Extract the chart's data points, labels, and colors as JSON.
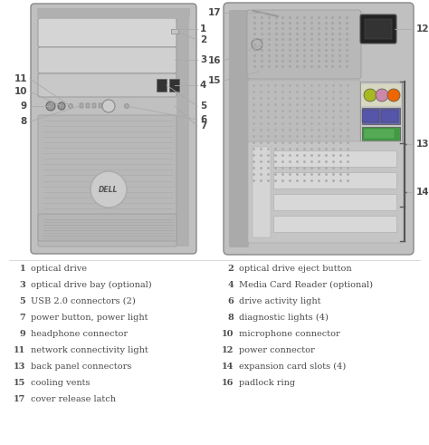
{
  "bg_color": "#ffffff",
  "text_color": "#4a4a4a",
  "line_color": "#aaaaaa",
  "legend_left": [
    [
      "1",
      "optical drive"
    ],
    [
      "3",
      "optical drive bay (optional)"
    ],
    [
      "5",
      "USB 2.0 connectors (2)"
    ],
    [
      "7",
      "power button, power light"
    ],
    [
      "9",
      "headphone connector"
    ],
    [
      "11",
      "network connectivity light"
    ],
    [
      "13",
      "back panel connectors"
    ],
    [
      "15",
      "cooling vents"
    ],
    [
      "17",
      "cover release latch"
    ]
  ],
  "legend_right": [
    [
      "2",
      "optical drive eject button"
    ],
    [
      "4",
      "Media Card Reader (optional)"
    ],
    [
      "6",
      "drive activity light"
    ],
    [
      "8",
      "diagnostic lights (4)"
    ],
    [
      "10",
      "microphone connector"
    ],
    [
      "12",
      "power connector"
    ],
    [
      "14",
      "expansion card slots (4)"
    ],
    [
      "16",
      "padlock ring"
    ]
  ],
  "font_size_legend": 7.0,
  "font_size_number": 7.5
}
